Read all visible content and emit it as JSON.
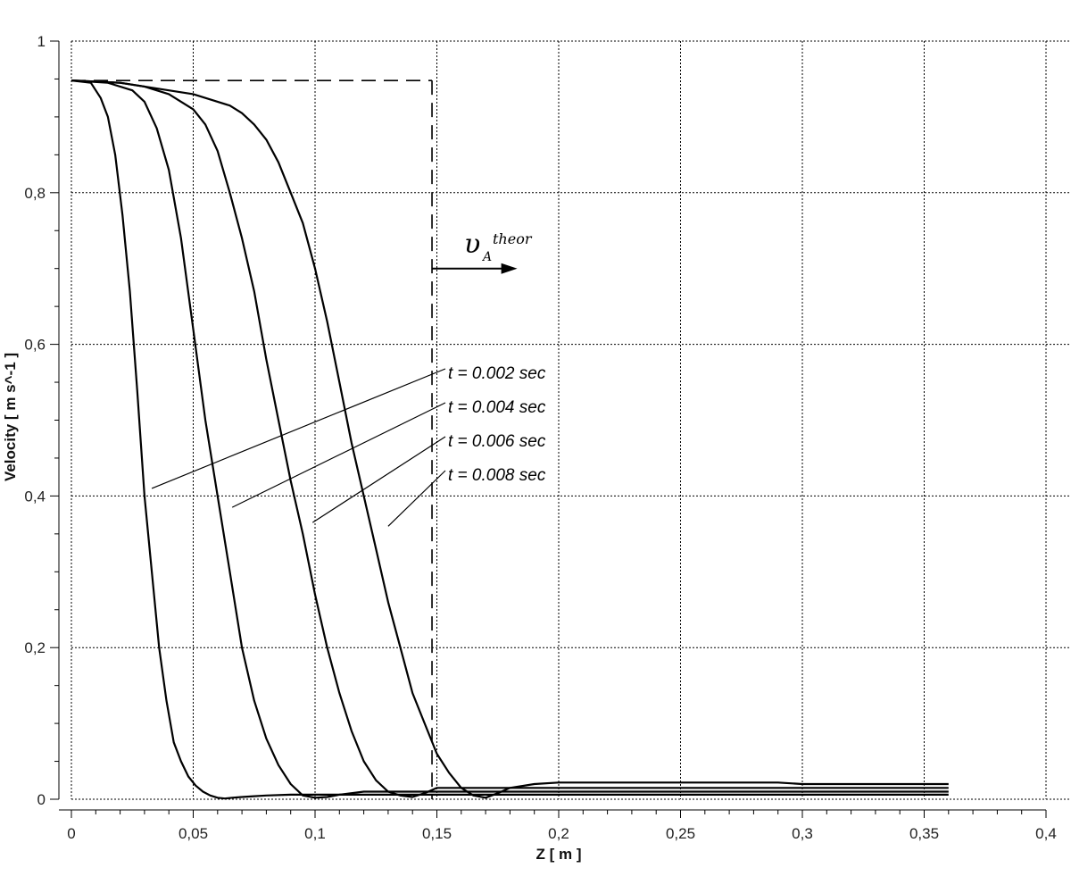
{
  "chart_data": {
    "type": "line",
    "xlabel": "Z [ m ]",
    "ylabel": "Velocity [ m s^-1 ]",
    "xlim": [
      0,
      0.4
    ],
    "ylim": [
      0,
      1
    ],
    "x_ticks": [
      0,
      0.05,
      0.1,
      0.15,
      0.2,
      0.25,
      0.3,
      0.35,
      0.4
    ],
    "x_tick_labels": [
      "0",
      "0,05",
      "0,1",
      "0,15",
      "0,2",
      "0,25",
      "0,3",
      "0,35",
      "0,4"
    ],
    "y_ticks": [
      0,
      0.2,
      0.4,
      0.6,
      0.8,
      1
    ],
    "y_tick_labels": [
      "0",
      "0,2",
      "0,4",
      "0,6",
      "0,8",
      "1"
    ],
    "grid": true,
    "series": [
      {
        "name": "t = 0.002 sec",
        "label_target": [
          0.033,
          0.41
        ],
        "x": [
          0,
          0.008,
          0.012,
          0.015,
          0.018,
          0.021,
          0.024,
          0.027,
          0.03,
          0.033,
          0.036,
          0.039,
          0.042,
          0.045,
          0.048,
          0.051,
          0.054,
          0.057,
          0.06,
          0.063,
          0.066,
          0.07,
          0.075,
          0.08,
          0.09,
          0.1,
          0.11,
          0.12,
          0.13,
          0.15,
          0.2,
          0.25,
          0.3,
          0.36
        ],
        "y": [
          0.948,
          0.945,
          0.925,
          0.9,
          0.85,
          0.77,
          0.67,
          0.54,
          0.4,
          0.3,
          0.2,
          0.13,
          0.075,
          0.05,
          0.03,
          0.018,
          0.01,
          0.005,
          0.002,
          0.001,
          0.002,
          0.003,
          0.004,
          0.005,
          0.006,
          0.006,
          0.006,
          0.006,
          0.006,
          0.006,
          0.006,
          0.006,
          0.006,
          0.006
        ]
      },
      {
        "name": "t = 0.004 sec",
        "label_target": [
          0.066,
          0.385
        ],
        "x": [
          0,
          0.015,
          0.025,
          0.03,
          0.035,
          0.04,
          0.045,
          0.05,
          0.055,
          0.06,
          0.065,
          0.07,
          0.075,
          0.08,
          0.085,
          0.09,
          0.095,
          0.1,
          0.105,
          0.11,
          0.12,
          0.13,
          0.14,
          0.15,
          0.2,
          0.25,
          0.3,
          0.36
        ],
        "y": [
          0.948,
          0.945,
          0.935,
          0.92,
          0.885,
          0.83,
          0.74,
          0.62,
          0.5,
          0.4,
          0.3,
          0.2,
          0.13,
          0.08,
          0.045,
          0.02,
          0.005,
          0.002,
          0.003,
          0.006,
          0.01,
          0.01,
          0.01,
          0.01,
          0.01,
          0.01,
          0.01,
          0.01
        ]
      },
      {
        "name": "t = 0.006 sec",
        "label_target": [
          0.099,
          0.365
        ],
        "x": [
          0,
          0.02,
          0.03,
          0.04,
          0.05,
          0.055,
          0.06,
          0.065,
          0.07,
          0.075,
          0.08,
          0.085,
          0.09,
          0.095,
          0.1,
          0.105,
          0.11,
          0.115,
          0.12,
          0.125,
          0.13,
          0.135,
          0.14,
          0.145,
          0.15,
          0.2,
          0.25,
          0.3,
          0.36
        ],
        "y": [
          0.948,
          0.945,
          0.94,
          0.93,
          0.91,
          0.89,
          0.855,
          0.8,
          0.74,
          0.67,
          0.58,
          0.5,
          0.42,
          0.35,
          0.27,
          0.2,
          0.14,
          0.09,
          0.05,
          0.025,
          0.01,
          0.005,
          0.003,
          0.008,
          0.015,
          0.015,
          0.015,
          0.015,
          0.015
        ]
      },
      {
        "name": "t = 0.008 sec",
        "label_target": [
          0.13,
          0.36
        ],
        "x": [
          0,
          0.02,
          0.04,
          0.05,
          0.06,
          0.065,
          0.07,
          0.075,
          0.08,
          0.085,
          0.09,
          0.095,
          0.1,
          0.105,
          0.11,
          0.115,
          0.12,
          0.125,
          0.13,
          0.135,
          0.14,
          0.145,
          0.15,
          0.155,
          0.16,
          0.165,
          0.17,
          0.175,
          0.18,
          0.19,
          0.2,
          0.25,
          0.29,
          0.3,
          0.36
        ],
        "y": [
          0.948,
          0.945,
          0.935,
          0.93,
          0.92,
          0.915,
          0.905,
          0.89,
          0.87,
          0.84,
          0.8,
          0.76,
          0.7,
          0.63,
          0.55,
          0.47,
          0.4,
          0.33,
          0.26,
          0.2,
          0.14,
          0.1,
          0.06,
          0.035,
          0.015,
          0.005,
          0.002,
          0.008,
          0.015,
          0.02,
          0.022,
          0.022,
          0.022,
          0.02,
          0.02
        ]
      }
    ],
    "reference": {
      "level": 0.948,
      "z": 0.148
    },
    "annotation": {
      "symbol": "υ",
      "subscript": "A",
      "superscript": "theor",
      "arrow_y": 0.7,
      "arrow_from": 0.148,
      "arrow_to": 0.183
    }
  }
}
